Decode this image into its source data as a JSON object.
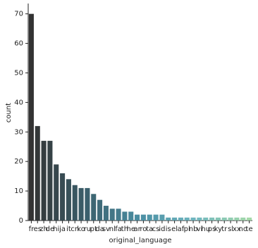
{
  "chart_data": {
    "type": "bar",
    "x_label": "original_language",
    "y_label": "count",
    "categories": [
      "fr",
      "es",
      "zh",
      "de",
      "hi",
      "ja",
      "it",
      "cn",
      "ko",
      "ru",
      "pt",
      "da",
      "sv",
      "nl",
      "fa",
      "th",
      "he",
      "ar",
      "ro",
      "ta",
      "cs",
      "id",
      "is",
      "el",
      "af",
      "pl",
      "nb",
      "vi",
      "hu",
      "ps",
      "ky",
      "tr",
      "sl",
      "xx",
      "no",
      "te"
    ],
    "values": [
      70,
      32,
      27,
      27,
      19,
      16,
      14,
      12,
      11,
      11,
      9,
      7,
      5,
      4,
      4,
      3,
      3,
      2,
      2,
      2,
      2,
      2,
      1,
      1,
      1,
      1,
      1,
      1,
      1,
      1,
      1,
      1,
      1,
      1,
      1,
      1
    ],
    "palette": [
      "#333333",
      "#3b5f6b",
      "#4b8fa3",
      "#6fb5bf",
      "#a3d8a8"
    ],
    "ylim": [
      0,
      73.5
    ],
    "yticks": [
      0,
      10,
      20,
      30,
      40,
      50,
      60,
      70
    ],
    "grid": false
  }
}
